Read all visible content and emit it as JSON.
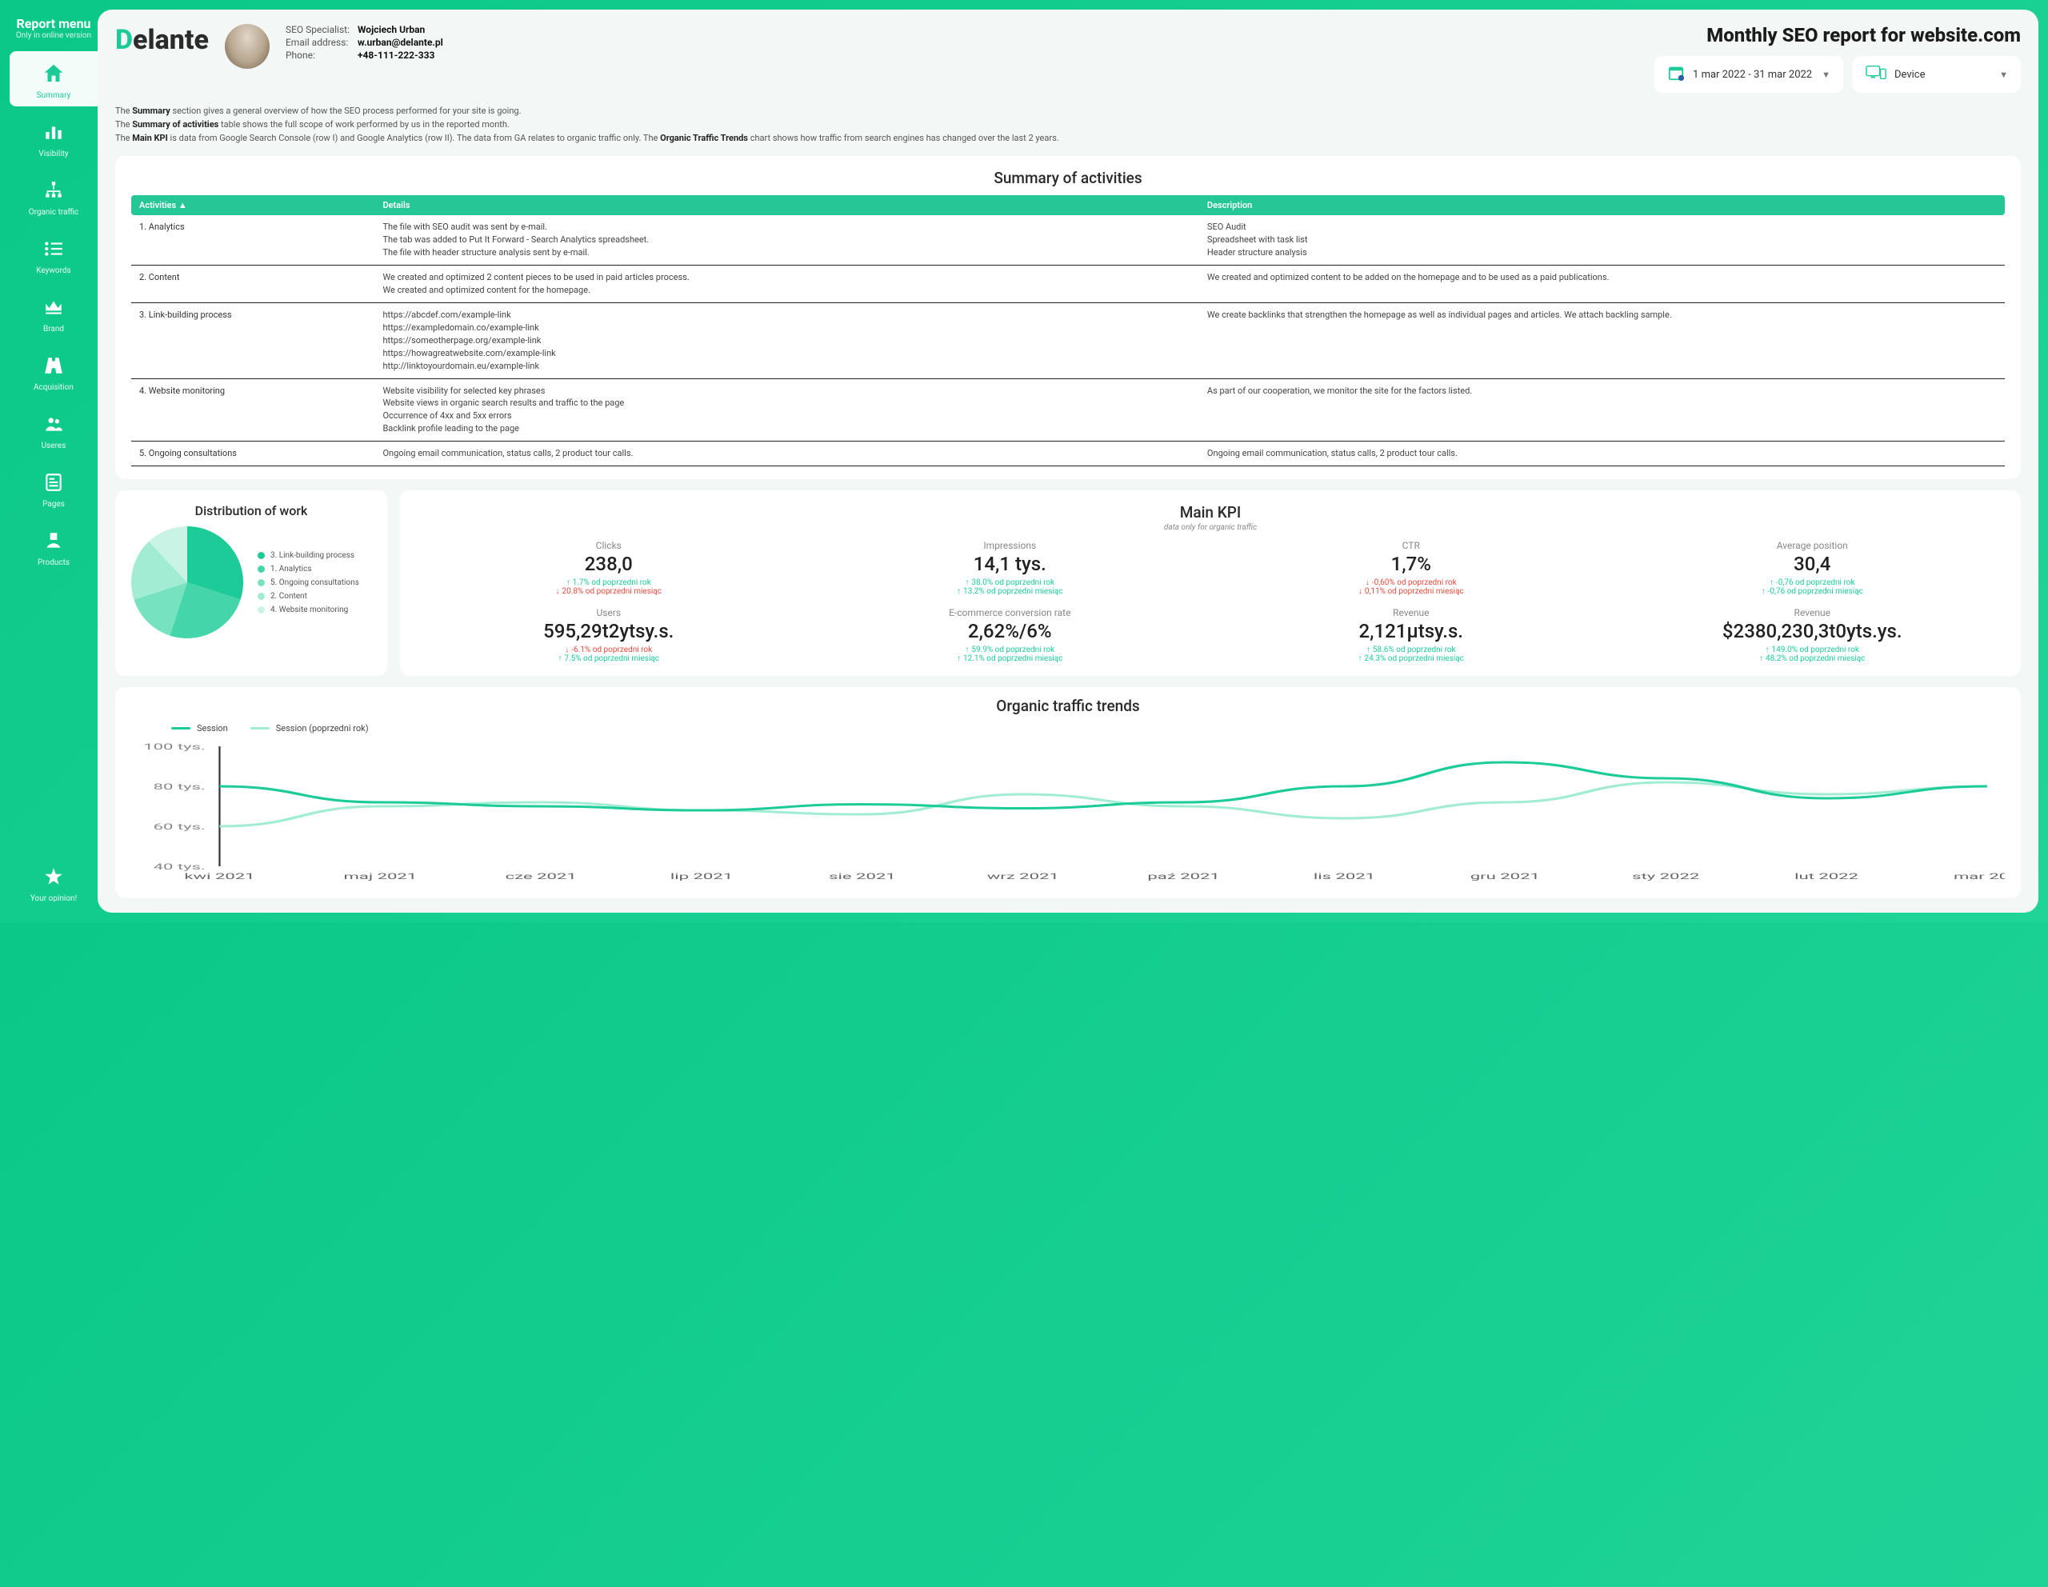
{
  "sidebar": {
    "title": "Report menu",
    "subtitle": "Only in online version",
    "items": [
      {
        "label": "Summary",
        "active": true
      },
      {
        "label": "Visibility",
        "active": false
      },
      {
        "label": "Organic traffic",
        "active": false
      },
      {
        "label": "Keywords",
        "active": false
      },
      {
        "label": "Brand",
        "active": false
      },
      {
        "label": "Acquisition",
        "active": false
      },
      {
        "label": "Useres",
        "active": false
      },
      {
        "label": "Pages",
        "active": false
      },
      {
        "label": "Products",
        "active": false
      },
      {
        "label": "Your opinion!",
        "active": false
      }
    ]
  },
  "header": {
    "logo": "Delante",
    "contact": {
      "spec_label": "SEO Specialist:",
      "spec_value": "Wojciech Urban",
      "email_label": "Email address:",
      "email_value": "w.urban@delante.pl",
      "phone_label": "Phone:",
      "phone_value": "+48-111-222-333"
    },
    "report_title": "Monthly SEO report for website.com",
    "date_filter": "1 mar 2022 - 31 mar 2022",
    "device_filter": "Device"
  },
  "intro": {
    "l1a": "The ",
    "l1b": "Summary",
    "l1c": " section gives a general overview of how the SEO process performed for your site is going.",
    "l2a": "The ",
    "l2b": "Summary of activities",
    "l2c": " table shows the full scope of work performed by us in the reported month.",
    "l3a": "The ",
    "l3b": "Main KPI",
    "l3c": " is data from Google Search Console (row I) and Google Analytics (row II). The data from GA relates to organic traffic only. The ",
    "l3d": "Organic Traffic Trends",
    "l3e": " chart shows how traffic from search engines has changed over the last 2 years."
  },
  "activities": {
    "title": "Summary of activities",
    "headers": {
      "a": "Activities  ▲",
      "b": "Details",
      "c": "Description"
    },
    "rows": [
      {
        "a": "1. Analytics",
        "b": "The file with SEO audit was sent by e-mail.\nThe tab was added to Put It Forward - Search Analytics spreadsheet.\nThe file with header structure analysis sent by e-mail.",
        "c": "SEO Audit\nSpreadsheet with task list\nHeader structure analysis"
      },
      {
        "a": "2. Content",
        "b": "We created and optimized 2 content pieces to be used in paid articles process.\nWe created and optimized content for the homepage.",
        "c": "We created and optimized content to be added on the homepage and to be used as a paid publications."
      },
      {
        "a": "3. Link-building process",
        "b": "https://abcdef.com/example-link\nhttps://exampledomain.co/example-link\nhttps://someotherpage.org/example-link\nhttps://howagreatwebsite.com/example-link\nhttp://linktoyourdomain.eu/example-link",
        "c": "We create backlinks that strengthen the homepage as well as individual pages and articles. We attach backling sample."
      },
      {
        "a": "4. Website monitoring",
        "b": "Website visibility for selected key phrases\nWebsite views in organic search results and traffic to the page\nOccurrence of 4xx and 5xx errors\nBacklink profile leading to the page",
        "c": "As part of our cooperation, we monitor the site for the factors listed."
      },
      {
        "a": "5. Ongoing consultations",
        "b": "Ongoing email communication, status calls, 2 product tour calls.",
        "c": "Ongoing email communication, status calls, 2 product tour calls."
      }
    ]
  },
  "distribution": {
    "title": "Distribution of work",
    "slices": [
      {
        "label": "3. Link-building process",
        "value": 30,
        "color": "#1dcb99"
      },
      {
        "label": "1. Analytics",
        "value": 25,
        "color": "#44d6aa"
      },
      {
        "label": "5. Ongoing consultations",
        "value": 15,
        "color": "#77e2c0"
      },
      {
        "label": "2. Content",
        "value": 18,
        "color": "#a2ecd4"
      },
      {
        "label": "4. Website monitoring",
        "value": 12,
        "color": "#c9f4e5"
      }
    ]
  },
  "kpi": {
    "title": "Main KPI",
    "subtitle": "data only for organic traffic",
    "items": [
      {
        "label": "Clicks",
        "value": "238,0",
        "d1": "1.7% od poprzedni rok",
        "d1dir": "up",
        "d2": "20.8% od poprzedni miesiąc",
        "d2dir": "down"
      },
      {
        "label": "Impressions",
        "value": "14,1 tys.",
        "d1": "38.0% od poprzedni rok",
        "d1dir": "up",
        "d2": "13.2% od poprzedni miesiąc",
        "d2dir": "up"
      },
      {
        "label": "CTR",
        "value": "1,7%",
        "d1": "-0,60% od poprzedni rok",
        "d1dir": "down",
        "d2": "0,11% od poprzedni miesiąc",
        "d2dir": "down"
      },
      {
        "label": "Average position",
        "value": "30,4",
        "d1": "-0,76 od poprzedni rok",
        "d1dir": "up",
        "d2": "-0,76 od poprzedni miesiąc",
        "d2dir": "up"
      },
      {
        "label": "Users",
        "value": "595,29t2ytsy.s.",
        "d1": "-6.1% od poprzedni rok",
        "d1dir": "down",
        "d2": "7.5% od poprzedni miesiąc",
        "d2dir": "up"
      },
      {
        "label": "E-commerce conversion rate",
        "value": "2,62%/6%",
        "d1": "59.9% od poprzedni rok",
        "d1dir": "up",
        "d2": "12.1% od poprzedni miesiąc",
        "d2dir": "up"
      },
      {
        "label": "Revenue",
        "value": "2,121µtsy.s.",
        "d1": "58.6% od poprzedni rok",
        "d1dir": "up",
        "d2": "24.3% od poprzedni miesiąc",
        "d2dir": "up"
      },
      {
        "label": "Revenue",
        "value": "$2380,230,3t0yts.ys.",
        "d1": "149.0% od poprzedni rok",
        "d1dir": "up",
        "d2": "48.2% od poprzedni miesiąc",
        "d2dir": "up"
      }
    ]
  },
  "trends": {
    "title": "Organic traffic trends",
    "legend": {
      "a": "Session",
      "b": "Session (poprzedni rok)"
    },
    "color_a": "#1dcb99",
    "color_b": "#a2ecd4",
    "ylabels": [
      "100 tys.",
      "80 tys.",
      "60 tys.",
      "40 tys."
    ],
    "yvalues": [
      100,
      80,
      60,
      40
    ],
    "xlabels": [
      "kwi 2021",
      "maj 2021",
      "cze 2021",
      "lip 2021",
      "sie 2021",
      "wrz 2021",
      "paź 2021",
      "lis 2021",
      "gru 2021",
      "sty 2022",
      "lut 2022",
      "mar 20…"
    ],
    "series_a": [
      80,
      72,
      70,
      68,
      71,
      69,
      72,
      80,
      92,
      84,
      74,
      80
    ],
    "series_b": [
      60,
      70,
      72,
      68,
      66,
      76,
      70,
      64,
      72,
      82,
      76,
      80
    ]
  },
  "colors": {
    "accent": "#1dcb99",
    "header_bar": "#24c795",
    "text": "#333333",
    "muted": "#888888",
    "up": "#1dcb99",
    "down": "#e74c3c",
    "card_bg": "#ffffff",
    "page_bg": "#f3f7f6"
  }
}
